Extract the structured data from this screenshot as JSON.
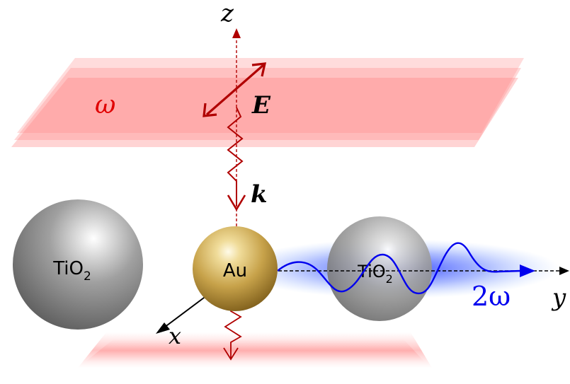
{
  "labels": {
    "axis_z": "z",
    "axis_x": "x",
    "axis_y": "y",
    "field_e": "E",
    "wave_k": "k",
    "fundamental_freq": "ω",
    "second_harmonic_freq": "2ω",
    "gold_particle": "Au",
    "tio2_left_main": "TiO",
    "tio2_left_sub": "2",
    "tio2_right_main": "TiO",
    "tio2_right_sub": "2"
  },
  "colors": {
    "fundamental_beam": "#b00000",
    "second_harmonic": "#0000ee",
    "axis": "#000000",
    "plane": "#ff9a9a",
    "tio2": "#8c8c8c",
    "gold": "#c8a84a"
  }
}
